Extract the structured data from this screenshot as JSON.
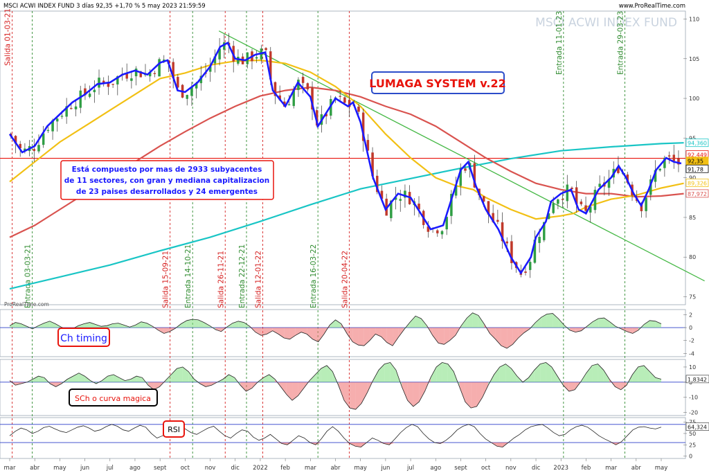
{
  "header": {
    "title": "MSCI ACWI INDEX FUND 3 días 92,35 +1,70 % 5 may 2023 21:59:59",
    "source": "www.ProRealTime.com",
    "watermark": "MSCI ACWI INDEX FUND",
    "copyright": "ProRealTime.com"
  },
  "annotations": {
    "system_title": "LUMAGA SYSTEM v.22",
    "description_lines": [
      "Está compuesto por mas de 2933 subyacentes",
      "de 11 sectores, con gran y mediana capitalizacion",
      "de 23 paises desarrollados y 24 emergentes"
    ],
    "ch_timing": "Ch timing",
    "sch": "SCh o curva magica",
    "rsi": "RSI"
  },
  "colors": {
    "candle_up": "#2f9e44",
    "candle_down": "#c0392b",
    "fast_line": "#1a1aff",
    "ma_yellow": "#f2c014",
    "ma_red": "#d9534f",
    "ma_cyan": "#19c5c5",
    "trendline": "#45b845",
    "hline": "#e8130b",
    "entry_line": "#2e8b2e",
    "exit_line": "#d62020"
  },
  "chart_data": [
    {
      "type": "candlestick",
      "title": "MSCI ACWI INDEX FUND",
      "timeframe": "3 días",
      "last": 92.35,
      "change_pct": 1.7,
      "date": "5 may 2023 21:59:59",
      "ylim": [
        74,
        111
      ],
      "yticks": [
        75,
        80,
        85,
        90,
        95,
        100,
        105,
        110
      ],
      "x_months": [
        "mar",
        "abr",
        "may",
        "jun",
        "jul",
        "ago",
        "sept",
        "oct",
        "nov",
        "dic",
        "2022",
        "feb",
        "mar",
        "abr",
        "may",
        "jun",
        "jul",
        "ago",
        "sept",
        "oct",
        "nov",
        "dic",
        "2023",
        "feb",
        "mar",
        "abr",
        "may"
      ],
      "signals": [
        {
          "label": "Salida 01-03-21",
          "type": "exit",
          "x_month": 0.1
        },
        {
          "label": "Entrada 03-03-21",
          "type": "entry",
          "x_month": 0.9
        },
        {
          "label": "Salida 15-09-21",
          "type": "exit",
          "x_month": 6.4
        },
        {
          "label": "Entrada 14-10-21",
          "type": "entry",
          "x_month": 7.3
        },
        {
          "label": "Salida 26-11-21",
          "type": "exit",
          "x_month": 8.6
        },
        {
          "label": "Entrada 22-12-21",
          "type": "entry",
          "x_month": 9.45
        },
        {
          "label": "Salida 12-01-22",
          "type": "exit",
          "x_month": 10.1
        },
        {
          "label": "Entrada 16-03-22",
          "type": "entry",
          "x_month": 12.3
        },
        {
          "label": "Salida 20-04-22",
          "type": "exit",
          "x_month": 13.55
        },
        {
          "label": "Entrada 11-01-23",
          "type": "entry",
          "x_month": 22.1
        },
        {
          "label": "Entrada 29-03-23",
          "type": "entry",
          "x_month": 24.55
        }
      ],
      "price_tags": [
        {
          "value": 94.36,
          "label": "94,360",
          "color": "#19c5c5"
        },
        {
          "value": 92.449,
          "label": "92,449",
          "color": "#e8130b"
        },
        {
          "value": 92.35,
          "label": "92,35",
          "color": "#f2c014"
        },
        {
          "value": 91.78,
          "label": "91,78",
          "color": "#000000"
        },
        {
          "value": 89.326,
          "label": "89,326",
          "color": "#f2c014"
        },
        {
          "value": 87.972,
          "label": "87,972",
          "color": "#d9534f"
        }
      ],
      "hline": 92.449,
      "trendline": [
        [
          8.35,
          108.5
        ],
        [
          26.9,
          77.0
        ]
      ],
      "fast_line": [
        [
          0,
          95.5
        ],
        [
          0.5,
          93.2
        ],
        [
          1,
          94
        ],
        [
          1.5,
          96.5
        ],
        [
          2,
          98
        ],
        [
          2.5,
          99.5
        ],
        [
          3,
          100.5
        ],
        [
          3.5,
          101.8
        ],
        [
          4,
          102
        ],
        [
          4.5,
          103
        ],
        [
          5,
          103.5
        ],
        [
          5.5,
          103
        ],
        [
          6,
          104.5
        ],
        [
          6.3,
          104.8
        ],
        [
          6.7,
          101
        ],
        [
          7,
          100.8
        ],
        [
          7.5,
          102
        ],
        [
          8,
          104
        ],
        [
          8.4,
          106.5
        ],
        [
          8.7,
          107
        ],
        [
          9,
          105
        ],
        [
          9.4,
          104.8
        ],
        [
          9.8,
          105.5
        ],
        [
          10.2,
          105.8
        ],
        [
          10.5,
          101
        ],
        [
          11,
          99
        ],
        [
          11.5,
          102
        ],
        [
          12,
          100.2
        ],
        [
          12.3,
          96.5
        ],
        [
          12.7,
          98.5
        ],
        [
          13,
          100
        ],
        [
          13.5,
          99
        ],
        [
          13.7,
          99.5
        ],
        [
          14,
          97
        ],
        [
          14.5,
          90
        ],
        [
          15,
          86
        ],
        [
          15.5,
          88
        ],
        [
          16,
          87.5
        ],
        [
          16.4,
          85.5
        ],
        [
          16.8,
          83.5
        ],
        [
          17.3,
          84
        ],
        [
          17.7,
          88
        ],
        [
          18,
          91
        ],
        [
          18.3,
          92
        ],
        [
          18.6,
          89
        ],
        [
          19,
          86
        ],
        [
          19.5,
          83.5
        ],
        [
          20,
          80
        ],
        [
          20.4,
          78
        ],
        [
          20.8,
          80
        ],
        [
          21,
          82.5
        ],
        [
          21.4,
          84.5
        ],
        [
          21.6,
          87
        ],
        [
          22,
          88
        ],
        [
          22.4,
          88.5
        ],
        [
          22.7,
          86
        ],
        [
          23,
          85.5
        ],
        [
          23.5,
          88.5
        ],
        [
          24,
          90
        ],
        [
          24.3,
          91.5
        ],
        [
          24.6,
          90
        ],
        [
          24.9,
          88
        ],
        [
          25.2,
          86.5
        ],
        [
          25.5,
          88.5
        ],
        [
          25.8,
          91
        ],
        [
          26.2,
          92.5
        ],
        [
          26.5,
          92
        ],
        [
          26.8,
          91.8
        ]
      ],
      "ma_yellow": [
        [
          0,
          89.5
        ],
        [
          1,
          92
        ],
        [
          2,
          94.5
        ],
        [
          3,
          96.5
        ],
        [
          4,
          98.5
        ],
        [
          5,
          100.5
        ],
        [
          6,
          102.5
        ],
        [
          7,
          103.2
        ],
        [
          8,
          104.2
        ],
        [
          9,
          104.7
        ],
        [
          10,
          104.8
        ],
        [
          11,
          104.4
        ],
        [
          12,
          103.3
        ],
        [
          13,
          101.5
        ],
        [
          14,
          99
        ],
        [
          15,
          95.5
        ],
        [
          16,
          92.5
        ],
        [
          17,
          90
        ],
        [
          17.8,
          89
        ],
        [
          18.5,
          88.5
        ],
        [
          19,
          87.5
        ],
        [
          20,
          86
        ],
        [
          21,
          84.8
        ],
        [
          22,
          85.2
        ],
        [
          22.5,
          85.5
        ],
        [
          23,
          86.3
        ],
        [
          24,
          87.3
        ],
        [
          25,
          87.8
        ],
        [
          26,
          88.7
        ],
        [
          26.9,
          89.3
        ]
      ],
      "ma_red": [
        [
          0,
          82.5
        ],
        [
          1,
          84
        ],
        [
          2,
          86
        ],
        [
          3,
          88
        ],
        [
          4,
          90
        ],
        [
          5,
          92
        ],
        [
          6,
          94
        ],
        [
          7,
          95.8
        ],
        [
          8,
          97.5
        ],
        [
          9,
          99
        ],
        [
          10,
          100.3
        ],
        [
          11,
          101
        ],
        [
          12,
          101.4
        ],
        [
          13,
          101
        ],
        [
          14,
          100.2
        ],
        [
          15,
          99
        ],
        [
          16,
          98
        ],
        [
          17,
          96.5
        ],
        [
          18,
          94.5
        ],
        [
          19,
          92.5
        ],
        [
          20,
          90.8
        ],
        [
          21,
          89.3
        ],
        [
          22,
          88.5
        ],
        [
          23,
          88
        ],
        [
          24,
          88
        ],
        [
          25,
          87.6
        ],
        [
          26,
          87.7
        ],
        [
          26.9,
          88
        ]
      ],
      "ma_cyan": [
        [
          0,
          76
        ],
        [
          2,
          77.5
        ],
        [
          4,
          79
        ],
        [
          6,
          80.8
        ],
        [
          8,
          82.5
        ],
        [
          10,
          84.5
        ],
        [
          12,
          86.6
        ],
        [
          14,
          88.6
        ],
        [
          16,
          89.9
        ],
        [
          18,
          91.2
        ],
        [
          20,
          92.4
        ],
        [
          22,
          93.4
        ],
        [
          24,
          93.9
        ],
        [
          26,
          94.3
        ],
        [
          26.9,
          94.4
        ]
      ]
    },
    {
      "type": "area",
      "title": "Ch timing",
      "ylim": [
        -4.5,
        2.8
      ],
      "yticks": [
        2,
        0,
        -2,
        -4
      ],
      "values": [
        0.3,
        0.8,
        0.6,
        0.2,
        -0.2,
        0.3,
        0.7,
        1.0,
        0.6,
        0.1,
        -0.3,
        -0.2,
        0.3,
        0.6,
        0.8,
        0.5,
        0.2,
        0.3,
        0.6,
        0.7,
        0.4,
        0.1,
        0.4,
        0.9,
        0.7,
        0.2,
        -0.4,
        -0.9,
        -0.6,
        -0.1,
        0.6,
        1.1,
        1.3,
        1.2,
        0.8,
        0.3,
        -0.3,
        -0.6,
        0.1,
        0.7,
        1.0,
        0.8,
        0.2,
        -0.7,
        -1.2,
        -1.0,
        -0.5,
        -1.0,
        -1.6,
        -1.8,
        -1.2,
        -0.7,
        -1.0,
        -1.8,
        -2.2,
        -1.0,
        0.4,
        1.2,
        0.6,
        -0.9,
        -2.2,
        -2.7,
        -2.8,
        -2.0,
        -1.0,
        -1.4,
        -2.3,
        -2.8,
        -1.5,
        -0.3,
        0.8,
        1.8,
        1.4,
        0.3,
        -1.2,
        -2.4,
        -2.6,
        -2.0,
        -1.2,
        0.3,
        1.5,
        2.3,
        1.9,
        0.6,
        -0.9,
        -1.8,
        -2.8,
        -3.2,
        -2.6,
        -1.6,
        -0.8,
        -0.2,
        0.8,
        1.6,
        2.1,
        2.2,
        1.4,
        0.4,
        -0.4,
        -0.7,
        -0.5,
        0.2,
        0.9,
        1.4,
        1.5,
        0.9,
        0.2,
        -0.2,
        -0.6,
        -0.9,
        -0.4,
        0.5,
        1.1,
        1.0,
        0.6
      ],
      "zero": 0
    },
    {
      "type": "area",
      "title": "SCh o curva magica",
      "ylim": [
        -22,
        15
      ],
      "yticks": [
        10,
        0,
        -10,
        -20
      ],
      "last": 1.8342,
      "last_label": "1,8342",
      "values": [
        1,
        -2,
        -1,
        0,
        2,
        4,
        3,
        -1,
        -3,
        -1,
        2,
        4,
        6,
        4,
        1,
        -1,
        1,
        4,
        5,
        3,
        1,
        2,
        4,
        3,
        -2,
        -5,
        -3,
        1,
        5,
        9,
        10,
        7,
        2,
        -1,
        -3,
        -2,
        0,
        2,
        5,
        3,
        -2,
        -6,
        -4,
        0,
        3,
        5,
        2,
        -3,
        -8,
        -12,
        -9,
        -4,
        1,
        5,
        9,
        11,
        7,
        -2,
        -12,
        -17,
        -18,
        -14,
        -7,
        1,
        8,
        12,
        13,
        8,
        -3,
        -12,
        -16,
        -13,
        -6,
        3,
        10,
        13,
        12,
        7,
        -3,
        -13,
        -17,
        -16,
        -10,
        -2,
        5,
        10,
        12,
        9,
        4,
        0,
        3,
        8,
        12,
        13,
        10,
        4,
        -2,
        -6,
        -5,
        0,
        6,
        11,
        12,
        8,
        2,
        -3,
        -5,
        -2,
        5,
        10,
        11,
        7,
        3,
        2
      ]
    },
    {
      "type": "line",
      "title": "RSI",
      "ylim": [
        -5,
        85
      ],
      "yticks": [
        75,
        50,
        25,
        0
      ],
      "last": 64.324,
      "last_label": "64,324",
      "upper": 70,
      "lower": 30,
      "values": [
        45,
        55,
        62,
        58,
        50,
        55,
        63,
        66,
        60,
        55,
        52,
        58,
        64,
        67,
        62,
        55,
        58,
        65,
        70,
        66,
        58,
        55,
        62,
        68,
        64,
        50,
        40,
        45,
        55,
        65,
        68,
        60,
        52,
        48,
        55,
        62,
        66,
        55,
        45,
        40,
        50,
        58,
        55,
        42,
        35,
        40,
        48,
        38,
        28,
        25,
        35,
        45,
        40,
        30,
        25,
        38,
        55,
        65,
        55,
        40,
        28,
        22,
        20,
        30,
        40,
        35,
        28,
        25,
        38,
        52,
        63,
        70,
        65,
        50,
        38,
        30,
        28,
        35,
        45,
        58,
        66,
        70,
        65,
        50,
        38,
        30,
        22,
        20,
        30,
        40,
        48,
        58,
        65,
        68,
        70,
        62,
        52,
        45,
        48,
        58,
        65,
        68,
        64,
        55,
        45,
        38,
        32,
        25,
        32,
        45,
        58,
        64,
        65,
        62,
        60,
        64
      ]
    }
  ],
  "x_axis": {
    "labels": [
      "mar",
      "abr",
      "may",
      "jun",
      "jul",
      "ago",
      "sept",
      "oct",
      "nov",
      "dic",
      "2022",
      "feb",
      "mar",
      "abr",
      "may",
      "jun",
      "jul",
      "ago",
      "sept",
      "oct",
      "nov",
      "dic",
      "2023",
      "feb",
      "mar",
      "abr",
      "may"
    ]
  }
}
